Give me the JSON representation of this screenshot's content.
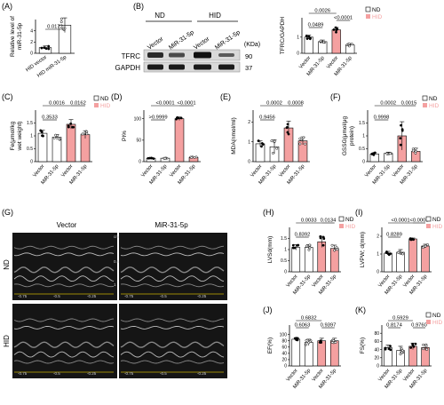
{
  "colors": {
    "nd_fill": "#ffffff",
    "hid_fill": "#f4a0a0",
    "hid_legend": "#f4a0a0",
    "axis": "#000000",
    "errorbar": "#000000",
    "echo_bg": "#151515"
  },
  "panel_labels": [
    "(A)",
    "(B)",
    "(C)",
    "(D)",
    "(E)",
    "(F)",
    "(G)",
    "(H)",
    "(I)",
    "(J)",
    "(K)"
  ],
  "legend": {
    "nd": "ND",
    "hid": "HID"
  },
  "blot": {
    "group_nd": "ND",
    "group_hid": "HID",
    "lanes": [
      "Vector",
      "MiR-31-5p",
      "Vector",
      "MiR-31-5p"
    ],
    "kda_label": "(KDa)",
    "bands": [
      {
        "name": "TFRC",
        "kda": "90"
      },
      {
        "name": "GAPDH",
        "kda": "37"
      }
    ]
  },
  "echo": {
    "col_vector": "Vector",
    "col_mir": "MiR-31-5p",
    "row_nd": "ND",
    "row_hid": "HID",
    "depth_scale": [
      "cm",
      "0.5",
      "1"
    ],
    "time_ticks": [
      "-0.75",
      "-0.5",
      "-0.25"
    ],
    "time_unit": "s"
  },
  "chart_data": [
    {
      "panel": "A",
      "type": "bar",
      "ylabel": [
        "Relative level of",
        "miR-31-5p"
      ],
      "categories": [
        "HID vector",
        "HID miR-31-5p"
      ],
      "values": [
        1.0,
        5.0
      ],
      "errors": [
        0.3,
        1.3
      ],
      "colors": [
        "nd",
        "nd"
      ],
      "ylim": [
        0,
        6
      ],
      "comparisons": [
        {
          "from": 0,
          "to": 1,
          "label": "0.0172"
        }
      ]
    },
    {
      "panel": "B",
      "type": "bar",
      "ylabel": [
        "TFRC/GAPDH"
      ],
      "categories": [
        "Vector",
        "MiR-31-5p",
        "Vector",
        "MiR-31-5p"
      ],
      "values": [
        1.0,
        0.72,
        1.45,
        0.52
      ],
      "errors": [
        0.12,
        0.1,
        0.15,
        0.08
      ],
      "colors": [
        "nd",
        "nd",
        "hid",
        "nd"
      ],
      "ylim": [
        0,
        2.2
      ],
      "legend": true,
      "comparisons": [
        {
          "from": 0,
          "to": 2,
          "label": "0.0026",
          "level": 2
        },
        {
          "from": 2,
          "to": 3,
          "label": "<0.0001",
          "level": 1
        },
        {
          "from": 0,
          "to": 1,
          "label": "0.0489",
          "level": 0
        }
      ]
    },
    {
      "panel": "C",
      "type": "bar",
      "ylabel": [
        "Fe(μmol/kg",
        "wet weight)"
      ],
      "categories": [
        "Vector",
        "MiR-31-5p",
        "Vector",
        "MiR-31-5p"
      ],
      "values": [
        1.1,
        0.95,
        1.45,
        1.05
      ],
      "errors": [
        0.12,
        0.1,
        0.18,
        0.15
      ],
      "colors": [
        "nd",
        "nd",
        "hid",
        "hid"
      ],
      "ylim": [
        0,
        2.0
      ],
      "legend": true,
      "comparisons": [
        {
          "from": 0,
          "to": 2,
          "label": "0.0016",
          "level": 2
        },
        {
          "from": 2,
          "to": 3,
          "label": "0.0162",
          "level": 2
        },
        {
          "from": 0,
          "to": 1,
          "label": "0.3533",
          "level": 0
        }
      ]
    },
    {
      "panel": "D",
      "type": "bar",
      "ylabel": [
        "PI%"
      ],
      "categories": [
        "Vector",
        "MiR-31-5p",
        "Vector",
        "MiR-31-5p"
      ],
      "values": [
        8,
        8,
        100,
        10
      ],
      "errors": [
        1,
        1,
        4,
        1
      ],
      "colors": [
        "nd",
        "nd",
        "hid",
        "hid"
      ],
      "ylim": [
        0,
        120
      ],
      "comparisons": [
        {
          "from": 0,
          "to": 2,
          "label": "<0.0001",
          "level": 2
        },
        {
          "from": 2,
          "to": 3,
          "label": "<0.0001",
          "level": 2
        },
        {
          "from": 0,
          "to": 1,
          "label": ">0.9999",
          "level": 0
        }
      ]
    },
    {
      "panel": "E",
      "type": "bar",
      "ylabel": [
        "MDA(nmol/ml)"
      ],
      "categories": [
        "Vector",
        "MiR-31-5p",
        "Vector",
        "MiR-31-5p"
      ],
      "values": [
        0.9,
        0.75,
        1.7,
        1.05
      ],
      "errors": [
        0.15,
        0.35,
        0.35,
        0.2
      ],
      "colors": [
        "nd",
        "nd",
        "hid",
        "hid"
      ],
      "ylim": [
        0,
        2.6
      ],
      "comparisons": [
        {
          "from": 0,
          "to": 2,
          "label": "0.0002",
          "level": 2
        },
        {
          "from": 2,
          "to": 3,
          "label": "0.0008",
          "level": 2
        },
        {
          "from": 0,
          "to": 1,
          "label": "0.9456",
          "level": 0
        }
      ]
    },
    {
      "panel": "F",
      "type": "bar",
      "ylabel": [
        "GSSG(μmol/μg",
        "protein)"
      ],
      "categories": [
        "Vector",
        "MiR-31-5p",
        "Vector",
        "MiR-31-5p"
      ],
      "values": [
        0.3,
        0.32,
        1.0,
        0.4
      ],
      "errors": [
        0.05,
        0.05,
        0.55,
        0.12
      ],
      "colors": [
        "nd",
        "nd",
        "hid",
        "hid"
      ],
      "ylim": [
        0,
        2.0
      ],
      "legend": true,
      "comparisons": [
        {
          "from": 0,
          "to": 2,
          "label": "0.0002",
          "level": 2
        },
        {
          "from": 2,
          "to": 3,
          "label": "0.0015",
          "level": 2
        },
        {
          "from": 0,
          "to": 1,
          "label": "0.9998",
          "level": 0
        }
      ]
    },
    {
      "panel": "H",
      "type": "bar",
      "ylabel": [
        "LVSd(mm)"
      ],
      "categories": [
        "Vector",
        "MiR-31-5p",
        "Vector",
        "MiR-31-5p"
      ],
      "values": [
        1.1,
        1.1,
        1.35,
        1.05
      ],
      "errors": [
        0.12,
        0.12,
        0.25,
        0.15
      ],
      "colors": [
        "nd",
        "nd",
        "hid",
        "hid"
      ],
      "ylim": [
        0,
        2.0
      ],
      "legend": true,
      "comparisons": [
        {
          "from": 0,
          "to": 2,
          "label": "0.0033",
          "level": 2
        },
        {
          "from": 2,
          "to": 3,
          "label": "0.0134",
          "level": 2
        },
        {
          "from": 0,
          "to": 1,
          "label": "0.8392",
          "level": 0
        }
      ]
    },
    {
      "panel": "I",
      "type": "bar",
      "ylabel": [
        "LVPW; d(mm)"
      ],
      "categories": [
        "Vector",
        "MiR-31-5p",
        "Vector",
        "MiR-31-5p"
      ],
      "values": [
        1.05,
        1.1,
        1.85,
        1.45
      ],
      "errors": [
        0.1,
        0.15,
        0.05,
        0.1
      ],
      "colors": [
        "nd",
        "nd",
        "hid",
        "hid"
      ],
      "ylim": [
        0,
        2.5
      ],
      "legend": true,
      "comparisons": [
        {
          "from": 0,
          "to": 2,
          "label": "<0.0001",
          "level": 2
        },
        {
          "from": 2,
          "to": 3,
          "label": "<0.0001",
          "level": 2
        },
        {
          "from": 0,
          "to": 1,
          "label": "0.8289",
          "level": 0
        }
      ]
    },
    {
      "panel": "J",
      "type": "bar",
      "ylabel": [
        "EF(%)"
      ],
      "categories": [
        "Vector",
        "MiR-31-5p",
        "Vector",
        "MiR-31-5p"
      ],
      "values": [
        85,
        75,
        80,
        80
      ],
      "errors": [
        5,
        10,
        8,
        8
      ],
      "colors": [
        "nd",
        "nd",
        "hid",
        "hid"
      ],
      "ylim": [
        0,
        130
      ],
      "yticks": [
        0,
        20,
        40,
        60,
        80,
        100
      ],
      "comparisons": [
        {
          "from": 0,
          "to": 2,
          "label": "0.6832",
          "level": 2
        },
        {
          "from": 2,
          "to": 3,
          "label": "0.9397",
          "level": 1
        },
        {
          "from": 0,
          "to": 1,
          "label": "0.6063",
          "level": 1
        }
      ]
    },
    {
      "panel": "K",
      "type": "bar",
      "ylabel": [
        "FS(%)"
      ],
      "categories": [
        "Vector",
        "MiR-31-5p",
        "Vector",
        "MiR-31-5p"
      ],
      "values": [
        45,
        38,
        48,
        45
      ],
      "errors": [
        6,
        10,
        8,
        7
      ],
      "colors": [
        "nd",
        "nd",
        "hid",
        "hid"
      ],
      "ylim": [
        0,
        100
      ],
      "yticks": [
        0,
        20,
        40,
        60,
        80
      ],
      "legend": true,
      "comparisons": [
        {
          "from": 0,
          "to": 2,
          "label": "0.5929",
          "level": 2
        },
        {
          "from": 2,
          "to": 3,
          "label": "0.9760",
          "level": 1
        },
        {
          "from": 0,
          "to": 1,
          "label": "0.8174",
          "level": 1
        }
      ]
    }
  ]
}
